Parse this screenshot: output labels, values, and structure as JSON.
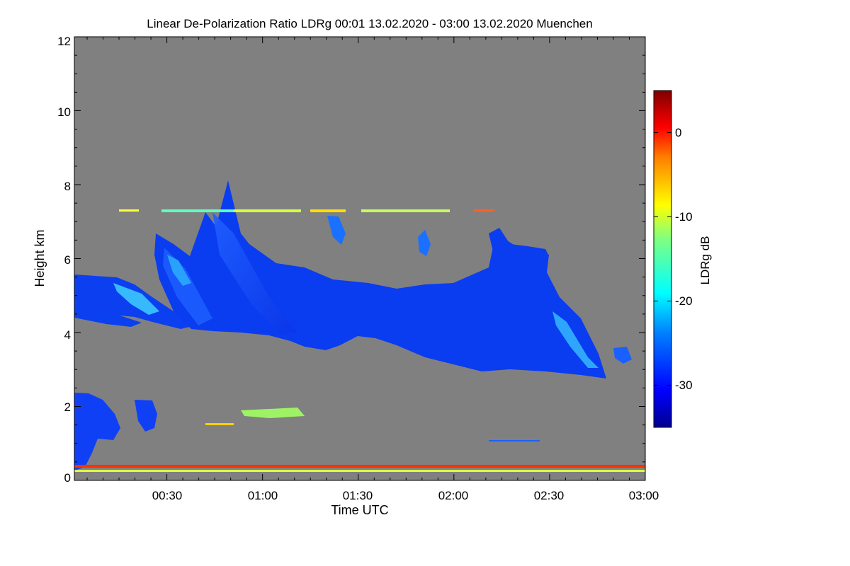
{
  "chart_data": {
    "type": "heatmap",
    "title": "Linear De-Polarization Ratio LDRg   00:01 13.02.2020 - 03:00 13.02.2020 Muenchen",
    "xlabel": "Time UTC",
    "ylabel": "Height km",
    "xlim_minutes": [
      1,
      180
    ],
    "ylim_km": [
      0,
      12
    ],
    "x_ticks": [
      {
        "minutes": 30,
        "label": "00:30"
      },
      {
        "minutes": 60,
        "label": "01:00"
      },
      {
        "minutes": 90,
        "label": "01:30"
      },
      {
        "minutes": 120,
        "label": "02:00"
      },
      {
        "minutes": 150,
        "label": "02:30"
      },
      {
        "minutes": 180,
        "label": "03:00"
      }
    ],
    "y_ticks": [
      {
        "value": 0,
        "label": "0"
      },
      {
        "value": 2,
        "label": "2"
      },
      {
        "value": 4,
        "label": "4"
      },
      {
        "value": 6,
        "label": "6"
      },
      {
        "value": 8,
        "label": "8"
      },
      {
        "value": 10,
        "label": "10"
      },
      {
        "value": 12,
        "label": "12"
      }
    ],
    "colorbar": {
      "label": "LDRg dB",
      "range_db": [
        -35,
        5
      ],
      "ticks": [
        {
          "value": 0,
          "label": "0"
        },
        {
          "value": -10,
          "label": "-10"
        },
        {
          "value": -20,
          "label": "-20"
        },
        {
          "value": -30,
          "label": "-30"
        }
      ]
    },
    "background_color": "#808080",
    "features": [
      {
        "name": "main-ice-cloud-layer",
        "time_start_min": 25,
        "time_end_min": 168,
        "base_km_start": 4.0,
        "base_km_end": 2.7,
        "top_km_start": 6.4,
        "top_km_end": 5.2,
        "typical_ldr_db": -30
      },
      {
        "name": "early-mid-level-layer",
        "time_start_min": 1,
        "time_end_min": 36,
        "base_km": 4.1,
        "top_km": 5.6,
        "typical_ldr_db": -28
      },
      {
        "name": "fall-streak-tops",
        "time_start_min": 43,
        "time_end_min": 53,
        "top_km": 8.1,
        "typical_ldr_db": -32
      },
      {
        "name": "thin-layer-7.3km",
        "time_start_min": 14,
        "time_end_min": 128,
        "height_km": 7.3,
        "typical_ldr_db": -15
      },
      {
        "name": "small-patches-6.5km",
        "time_start_min": 81,
        "time_end_min": 125,
        "height_km": 6.5,
        "typical_ldr_db": -30
      },
      {
        "name": "boundary-layer-aerosol",
        "time_start_min": 1,
        "time_end_min": 15,
        "base_km": 0.1,
        "top_km": 2.3,
        "typical_ldr_db": -30
      },
      {
        "name": "low-patch-00:22",
        "time_start_min": 19,
        "time_end_min": 27,
        "base_km": 1.3,
        "top_km": 2.2,
        "typical_ldr_db": -28
      },
      {
        "name": "aerosol-layer-1.8km",
        "time_start_min": 53,
        "time_end_min": 76,
        "height_km": 1.8,
        "typical_ldr_db": -15
      },
      {
        "name": "near-surface-overlap-band",
        "time_start_min": 1,
        "time_end_min": 180,
        "height_km": 0.3,
        "typical_ldr_db": -2
      },
      {
        "name": "near-surface-band-low",
        "time_start_min": 1,
        "time_end_min": 180,
        "height_km": 0.15,
        "typical_ldr_db": -10
      },
      {
        "name": "small-patch-3.4km",
        "time_start_min": 170,
        "time_end_min": 175,
        "height_km": 3.4,
        "typical_ldr_db": -25
      }
    ]
  }
}
